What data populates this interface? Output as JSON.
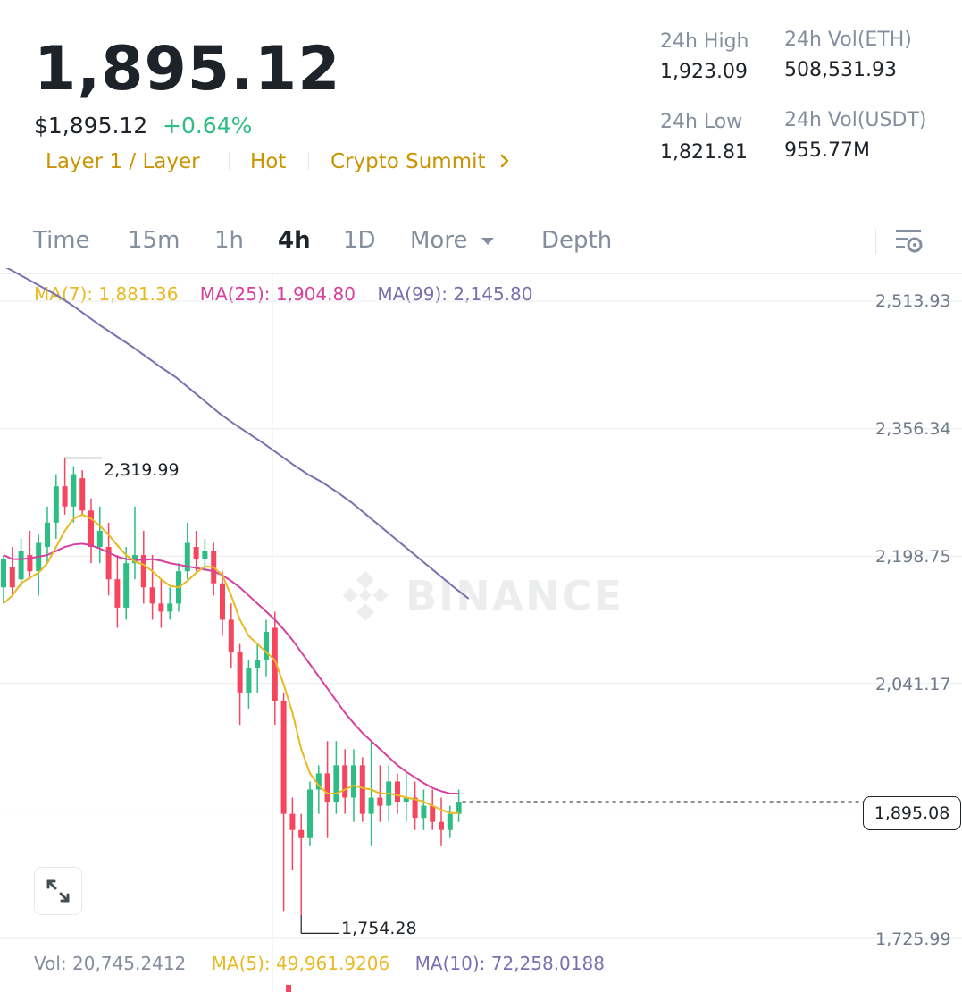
{
  "ticker": {
    "last_price": "1,895.12",
    "usd_price": "$1,895.12",
    "change_pct": "+0.64%",
    "tags": [
      "Layer 1 / Layer",
      "Hot",
      "Crypto Summit"
    ],
    "tag_more_icon": "chevron-right-icon"
  },
  "stats": {
    "high_label": "24h High",
    "high_value": "1,923.09",
    "vol_eth_label": "24h Vol(ETH)",
    "vol_eth_value": "508,531.93",
    "low_label": "24h Low",
    "low_value": "1,821.81",
    "vol_usdt_label": "24h Vol(USDT)",
    "vol_usdt_value": "955.77M"
  },
  "tabs": {
    "time": "Time",
    "m15": "15m",
    "h1": "1h",
    "h4": "4h",
    "d1": "1D",
    "more": "More",
    "depth": "Depth",
    "active": "4h",
    "settings_icon": "chart-settings-icon"
  },
  "ma_legend": {
    "ma7_label": "MA(7): ",
    "ma7_value": "1,881.36",
    "ma25_label": "MA(25): ",
    "ma25_value": "1,904.80",
    "ma99_label": "MA(99): ",
    "ma99_value": "2,145.80"
  },
  "colors": {
    "up": "#2ebd85",
    "down": "#f6465d",
    "ma7": "#e8b923",
    "ma25": "#d6409f",
    "ma99": "#7a6fb0",
    "tag": "#c99400"
  },
  "watermark": "BINANCE",
  "current_price_label": "1,895.08",
  "expand_icon": "expand-icon",
  "volume": {
    "vol_label": "Vol: ",
    "vol_value": "20,745.2412",
    "ma5_label": "MA(5): ",
    "ma5_value": "49,961.9206",
    "ma10_label": "MA(10): ",
    "ma10_value": "72,258.0188"
  },
  "chart_data": {
    "type": "candlestick",
    "y_ticks": [
      2513.93,
      2356.34,
      2198.75,
      2041.17,
      1883.58,
      1725.99
    ],
    "y_tick_labels": [
      "2,513.93",
      "2,356.34",
      "2,198.75",
      "2,041.17",
      "",
      "1,725.99"
    ],
    "high_marker": {
      "value": 2319.99,
      "label": "2,319.99"
    },
    "low_marker": {
      "value": 1754.28,
      "label": "1,754.28"
    },
    "current_price": 1895.08,
    "candles": [
      {
        "o": 2160,
        "h": 2200,
        "l": 2140,
        "c": 2195
      },
      {
        "o": 2185,
        "h": 2210,
        "l": 2150,
        "c": 2160
      },
      {
        "o": 2170,
        "h": 2220,
        "l": 2160,
        "c": 2205
      },
      {
        "o": 2200,
        "h": 2230,
        "l": 2170,
        "c": 2180
      },
      {
        "o": 2180,
        "h": 2225,
        "l": 2150,
        "c": 2215
      },
      {
        "o": 2210,
        "h": 2260,
        "l": 2190,
        "c": 2240
      },
      {
        "o": 2240,
        "h": 2300,
        "l": 2220,
        "c": 2285
      },
      {
        "o": 2285,
        "h": 2320,
        "l": 2250,
        "c": 2260
      },
      {
        "o": 2260,
        "h": 2310,
        "l": 2240,
        "c": 2300
      },
      {
        "o": 2295,
        "h": 2305,
        "l": 2250,
        "c": 2255
      },
      {
        "o": 2255,
        "h": 2270,
        "l": 2190,
        "c": 2210
      },
      {
        "o": 2210,
        "h": 2260,
        "l": 2190,
        "c": 2230
      },
      {
        "o": 2210,
        "h": 2240,
        "l": 2150,
        "c": 2170
      },
      {
        "o": 2170,
        "h": 2200,
        "l": 2110,
        "c": 2135
      },
      {
        "o": 2135,
        "h": 2210,
        "l": 2120,
        "c": 2190
      },
      {
        "o": 2190,
        "h": 2260,
        "l": 2170,
        "c": 2200
      },
      {
        "o": 2200,
        "h": 2230,
        "l": 2140,
        "c": 2160
      },
      {
        "o": 2160,
        "h": 2200,
        "l": 2120,
        "c": 2140
      },
      {
        "o": 2140,
        "h": 2170,
        "l": 2110,
        "c": 2130
      },
      {
        "o": 2130,
        "h": 2160,
        "l": 2120,
        "c": 2140
      },
      {
        "o": 2140,
        "h": 2190,
        "l": 2130,
        "c": 2180
      },
      {
        "o": 2180,
        "h": 2240,
        "l": 2170,
        "c": 2215
      },
      {
        "o": 2210,
        "h": 2230,
        "l": 2180,
        "c": 2195
      },
      {
        "o": 2195,
        "h": 2220,
        "l": 2180,
        "c": 2205
      },
      {
        "o": 2205,
        "h": 2215,
        "l": 2150,
        "c": 2165
      },
      {
        "o": 2165,
        "h": 2180,
        "l": 2100,
        "c": 2120
      },
      {
        "o": 2120,
        "h": 2140,
        "l": 2060,
        "c": 2080
      },
      {
        "o": 2080,
        "h": 2090,
        "l": 1990,
        "c": 2030
      },
      {
        "o": 2030,
        "h": 2070,
        "l": 2010,
        "c": 2060
      },
      {
        "o": 2060,
        "h": 2090,
        "l": 2030,
        "c": 2070
      },
      {
        "o": 2070,
        "h": 2120,
        "l": 2050,
        "c": 2105
      },
      {
        "o": 2110,
        "h": 2130,
        "l": 1990,
        "c": 2020
      },
      {
        "o": 2020,
        "h": 2030,
        "l": 1760,
        "c": 1880
      },
      {
        "o": 1880,
        "h": 1900,
        "l": 1810,
        "c": 1860
      },
      {
        "o": 1860,
        "h": 1880,
        "l": 1754,
        "c": 1850
      },
      {
        "o": 1850,
        "h": 1920,
        "l": 1840,
        "c": 1910
      },
      {
        "o": 1910,
        "h": 1940,
        "l": 1880,
        "c": 1930
      },
      {
        "o": 1930,
        "h": 1970,
        "l": 1850,
        "c": 1895
      },
      {
        "o": 1895,
        "h": 1970,
        "l": 1880,
        "c": 1940
      },
      {
        "o": 1940,
        "h": 1960,
        "l": 1880,
        "c": 1900
      },
      {
        "o": 1900,
        "h": 1960,
        "l": 1870,
        "c": 1940
      },
      {
        "o": 1940,
        "h": 1950,
        "l": 1870,
        "c": 1880
      },
      {
        "o": 1880,
        "h": 1970,
        "l": 1840,
        "c": 1900
      },
      {
        "o": 1900,
        "h": 1940,
        "l": 1870,
        "c": 1890
      },
      {
        "o": 1890,
        "h": 1940,
        "l": 1870,
        "c": 1920
      },
      {
        "o": 1920,
        "h": 1930,
        "l": 1880,
        "c": 1895
      },
      {
        "o": 1895,
        "h": 1930,
        "l": 1870,
        "c": 1900
      },
      {
        "o": 1900,
        "h": 1920,
        "l": 1860,
        "c": 1875
      },
      {
        "o": 1875,
        "h": 1910,
        "l": 1860,
        "c": 1890
      },
      {
        "o": 1890,
        "h": 1910,
        "l": 1860,
        "c": 1870
      },
      {
        "o": 1870,
        "h": 1900,
        "l": 1840,
        "c": 1860
      },
      {
        "o": 1860,
        "h": 1890,
        "l": 1850,
        "c": 1880
      },
      {
        "o": 1880,
        "h": 1910,
        "l": 1870,
        "c": 1895
      }
    ],
    "ma7": [
      2140,
      2150,
      2165,
      2172,
      2178,
      2190,
      2210,
      2230,
      2245,
      2250,
      2245,
      2236,
      2225,
      2212,
      2200,
      2192,
      2188,
      2180,
      2170,
      2162,
      2160,
      2168,
      2178,
      2186,
      2185,
      2175,
      2150,
      2120,
      2100,
      2090,
      2080,
      2070,
      2040,
      2005,
      1960,
      1930,
      1915,
      1905,
      1905,
      1910,
      1915,
      1912,
      1910,
      1905,
      1905,
      1903,
      1900,
      1898,
      1895,
      1890,
      1885,
      1881,
      1881
    ],
    "ma25": [
      2200,
      2195,
      2195,
      2196,
      2198,
      2200,
      2205,
      2210,
      2213,
      2214,
      2212,
      2208,
      2203,
      2198,
      2195,
      2194,
      2194,
      2195,
      2193,
      2190,
      2188,
      2186,
      2184,
      2182,
      2180,
      2175,
      2168,
      2160,
      2150,
      2140,
      2130,
      2120,
      2108,
      2095,
      2080,
      2065,
      2050,
      2035,
      2020,
      2005,
      1992,
      1980,
      1970,
      1960,
      1950,
      1940,
      1932,
      1925,
      1918,
      1912,
      1908,
      1905,
      1905
    ],
    "ma99": [
      2560,
      2550,
      2540,
      2530,
      2520,
      2508,
      2495,
      2482,
      2470,
      2458,
      2445,
      2432,
      2420,
      2405,
      2390,
      2375,
      2362,
      2350,
      2338,
      2325,
      2312,
      2300,
      2290,
      2278,
      2265,
      2250,
      2235,
      2220,
      2205,
      2190,
      2175,
      2160,
      2146
    ]
  }
}
